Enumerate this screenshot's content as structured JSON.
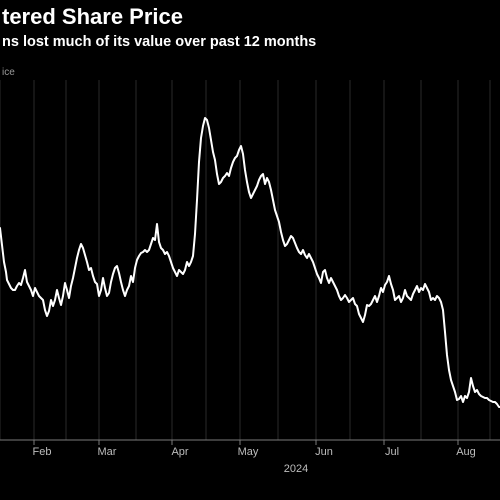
{
  "header": {
    "title": "tered Share Price",
    "subtitle": "ns lost much of its value over past 12 months",
    "series_label": "ice"
  },
  "colors": {
    "background": "#000000",
    "line": "#ffffff",
    "grid": "#2a2a2a",
    "axis_text": "#bdbdbd"
  },
  "chart_data": {
    "type": "line",
    "x_ticks": [
      "Feb",
      "Mar",
      "Apr",
      "May",
      "Jun",
      "Jul",
      "Aug"
    ],
    "x_sublabel": "2024",
    "grid": true,
    "series": [
      {
        "values": [
          [
            0,
            228
          ],
          [
            2,
            245
          ],
          [
            4,
            262
          ],
          [
            6,
            272
          ],
          [
            7,
            280
          ],
          [
            9,
            284
          ],
          [
            11,
            288
          ],
          [
            13,
            290
          ],
          [
            15,
            290
          ],
          [
            17,
            286
          ],
          [
            19,
            283
          ],
          [
            21,
            285
          ],
          [
            23,
            278
          ],
          [
            25,
            270
          ],
          [
            27,
            282
          ],
          [
            29,
            286
          ],
          [
            31,
            290
          ],
          [
            33,
            296
          ],
          [
            35,
            288
          ],
          [
            37,
            292
          ],
          [
            39,
            296
          ],
          [
            41,
            298
          ],
          [
            43,
            300
          ],
          [
            45,
            310
          ],
          [
            47,
            316
          ],
          [
            49,
            311
          ],
          [
            51,
            300
          ],
          [
            53,
            306
          ],
          [
            55,
            300
          ],
          [
            57,
            290
          ],
          [
            59,
            298
          ],
          [
            61,
            305
          ],
          [
            63,
            296
          ],
          [
            65,
            283
          ],
          [
            67,
            290
          ],
          [
            69,
            298
          ],
          [
            71,
            286
          ],
          [
            73,
            278
          ],
          [
            75,
            268
          ],
          [
            77,
            258
          ],
          [
            79,
            250
          ],
          [
            81,
            244
          ],
          [
            83,
            248
          ],
          [
            85,
            255
          ],
          [
            87,
            262
          ],
          [
            89,
            270
          ],
          [
            91,
            268
          ],
          [
            93,
            276
          ],
          [
            95,
            282
          ],
          [
            97,
            284
          ],
          [
            99,
            296
          ],
          [
            101,
            290
          ],
          [
            103,
            278
          ],
          [
            105,
            288
          ],
          [
            107,
            296
          ],
          [
            109,
            293
          ],
          [
            111,
            282
          ],
          [
            113,
            274
          ],
          [
            115,
            268
          ],
          [
            117,
            266
          ],
          [
            119,
            273
          ],
          [
            121,
            282
          ],
          [
            123,
            290
          ],
          [
            125,
            296
          ],
          [
            127,
            290
          ],
          [
            129,
            286
          ],
          [
            131,
            276
          ],
          [
            133,
            282
          ],
          [
            135,
            268
          ],
          [
            137,
            260
          ],
          [
            139,
            256
          ],
          [
            141,
            253
          ],
          [
            143,
            252
          ],
          [
            145,
            250
          ],
          [
            147,
            252
          ],
          [
            149,
            250
          ],
          [
            151,
            244
          ],
          [
            153,
            238
          ],
          [
            155,
            240
          ],
          [
            157,
            224
          ],
          [
            159,
            242
          ],
          [
            161,
            248
          ],
          [
            163,
            250
          ],
          [
            165,
            254
          ],
          [
            167,
            252
          ],
          [
            169,
            256
          ],
          [
            171,
            262
          ],
          [
            173,
            268
          ],
          [
            175,
            272
          ],
          [
            177,
            276
          ],
          [
            179,
            270
          ],
          [
            181,
            272
          ],
          [
            183,
            274
          ],
          [
            185,
            270
          ],
          [
            187,
            262
          ],
          [
            189,
            266
          ],
          [
            191,
            262
          ],
          [
            193,
            256
          ],
          [
            195,
            234
          ],
          [
            197,
            200
          ],
          [
            199,
            162
          ],
          [
            201,
            138
          ],
          [
            203,
            126
          ],
          [
            205,
            118
          ],
          [
            207,
            120
          ],
          [
            209,
            128
          ],
          [
            211,
            140
          ],
          [
            213,
            152
          ],
          [
            215,
            160
          ],
          [
            217,
            174
          ],
          [
            219,
            184
          ],
          [
            221,
            182
          ],
          [
            223,
            178
          ],
          [
            225,
            176
          ],
          [
            227,
            173
          ],
          [
            229,
            176
          ],
          [
            231,
            168
          ],
          [
            233,
            162
          ],
          [
            235,
            158
          ],
          [
            237,
            156
          ],
          [
            239,
            150
          ],
          [
            241,
            146
          ],
          [
            243,
            154
          ],
          [
            245,
            170
          ],
          [
            247,
            182
          ],
          [
            249,
            192
          ],
          [
            251,
            198
          ],
          [
            253,
            194
          ],
          [
            255,
            190
          ],
          [
            257,
            186
          ],
          [
            259,
            180
          ],
          [
            261,
            176
          ],
          [
            263,
            174
          ],
          [
            265,
            184
          ],
          [
            267,
            178
          ],
          [
            269,
            182
          ],
          [
            271,
            190
          ],
          [
            273,
            200
          ],
          [
            275,
            210
          ],
          [
            277,
            216
          ],
          [
            279,
            222
          ],
          [
            281,
            232
          ],
          [
            283,
            240
          ],
          [
            285,
            246
          ],
          [
            287,
            244
          ],
          [
            289,
            240
          ],
          [
            291,
            236
          ],
          [
            293,
            238
          ],
          [
            295,
            243
          ],
          [
            297,
            248
          ],
          [
            299,
            252
          ],
          [
            301,
            254
          ],
          [
            303,
            250
          ],
          [
            305,
            255
          ],
          [
            307,
            258
          ],
          [
            309,
            254
          ],
          [
            311,
            258
          ],
          [
            313,
            262
          ],
          [
            315,
            268
          ],
          [
            317,
            274
          ],
          [
            319,
            278
          ],
          [
            321,
            283
          ],
          [
            323,
            272
          ],
          [
            325,
            270
          ],
          [
            327,
            278
          ],
          [
            329,
            283
          ],
          [
            331,
            278
          ],
          [
            333,
            282
          ],
          [
            335,
            286
          ],
          [
            337,
            290
          ],
          [
            339,
            296
          ],
          [
            341,
            300
          ],
          [
            343,
            298
          ],
          [
            345,
            295
          ],
          [
            347,
            298
          ],
          [
            349,
            302
          ],
          [
            351,
            300
          ],
          [
            353,
            298
          ],
          [
            355,
            304
          ],
          [
            357,
            306
          ],
          [
            359,
            314
          ],
          [
            361,
            318
          ],
          [
            363,
            322
          ],
          [
            365,
            315
          ],
          [
            367,
            305
          ],
          [
            369,
            306
          ],
          [
            371,
            304
          ],
          [
            373,
            300
          ],
          [
            375,
            296
          ],
          [
            377,
            302
          ],
          [
            379,
            296
          ],
          [
            381,
            288
          ],
          [
            383,
            292
          ],
          [
            385,
            285
          ],
          [
            387,
            282
          ],
          [
            389,
            276
          ],
          [
            391,
            284
          ],
          [
            393,
            290
          ],
          [
            395,
            300
          ],
          [
            397,
            298
          ],
          [
            399,
            296
          ],
          [
            401,
            302
          ],
          [
            403,
            298
          ],
          [
            405,
            290
          ],
          [
            407,
            296
          ],
          [
            409,
            298
          ],
          [
            411,
            300
          ],
          [
            413,
            294
          ],
          [
            415,
            290
          ],
          [
            417,
            286
          ],
          [
            419,
            292
          ],
          [
            421,
            288
          ],
          [
            423,
            290
          ],
          [
            425,
            284
          ],
          [
            427,
            288
          ],
          [
            429,
            292
          ],
          [
            431,
            300
          ],
          [
            433,
            298
          ],
          [
            435,
            300
          ],
          [
            437,
            296
          ],
          [
            439,
            298
          ],
          [
            441,
            302
          ],
          [
            443,
            310
          ],
          [
            445,
            332
          ],
          [
            447,
            355
          ],
          [
            449,
            370
          ],
          [
            451,
            380
          ],
          [
            453,
            386
          ],
          [
            455,
            392
          ],
          [
            457,
            400
          ],
          [
            459,
            399
          ],
          [
            461,
            396
          ],
          [
            463,
            402
          ],
          [
            465,
            396
          ],
          [
            467,
            398
          ],
          [
            469,
            392
          ],
          [
            471,
            378
          ],
          [
            473,
            386
          ],
          [
            475,
            392
          ],
          [
            477,
            390
          ],
          [
            479,
            394
          ],
          [
            481,
            396
          ],
          [
            483,
            397
          ],
          [
            485,
            398
          ],
          [
            487,
            398
          ],
          [
            489,
            400
          ],
          [
            491,
            401
          ],
          [
            493,
            402
          ],
          [
            495,
            402
          ],
          [
            497,
            404
          ],
          [
            499,
            407
          ],
          [
            500,
            407
          ]
        ]
      }
    ]
  }
}
